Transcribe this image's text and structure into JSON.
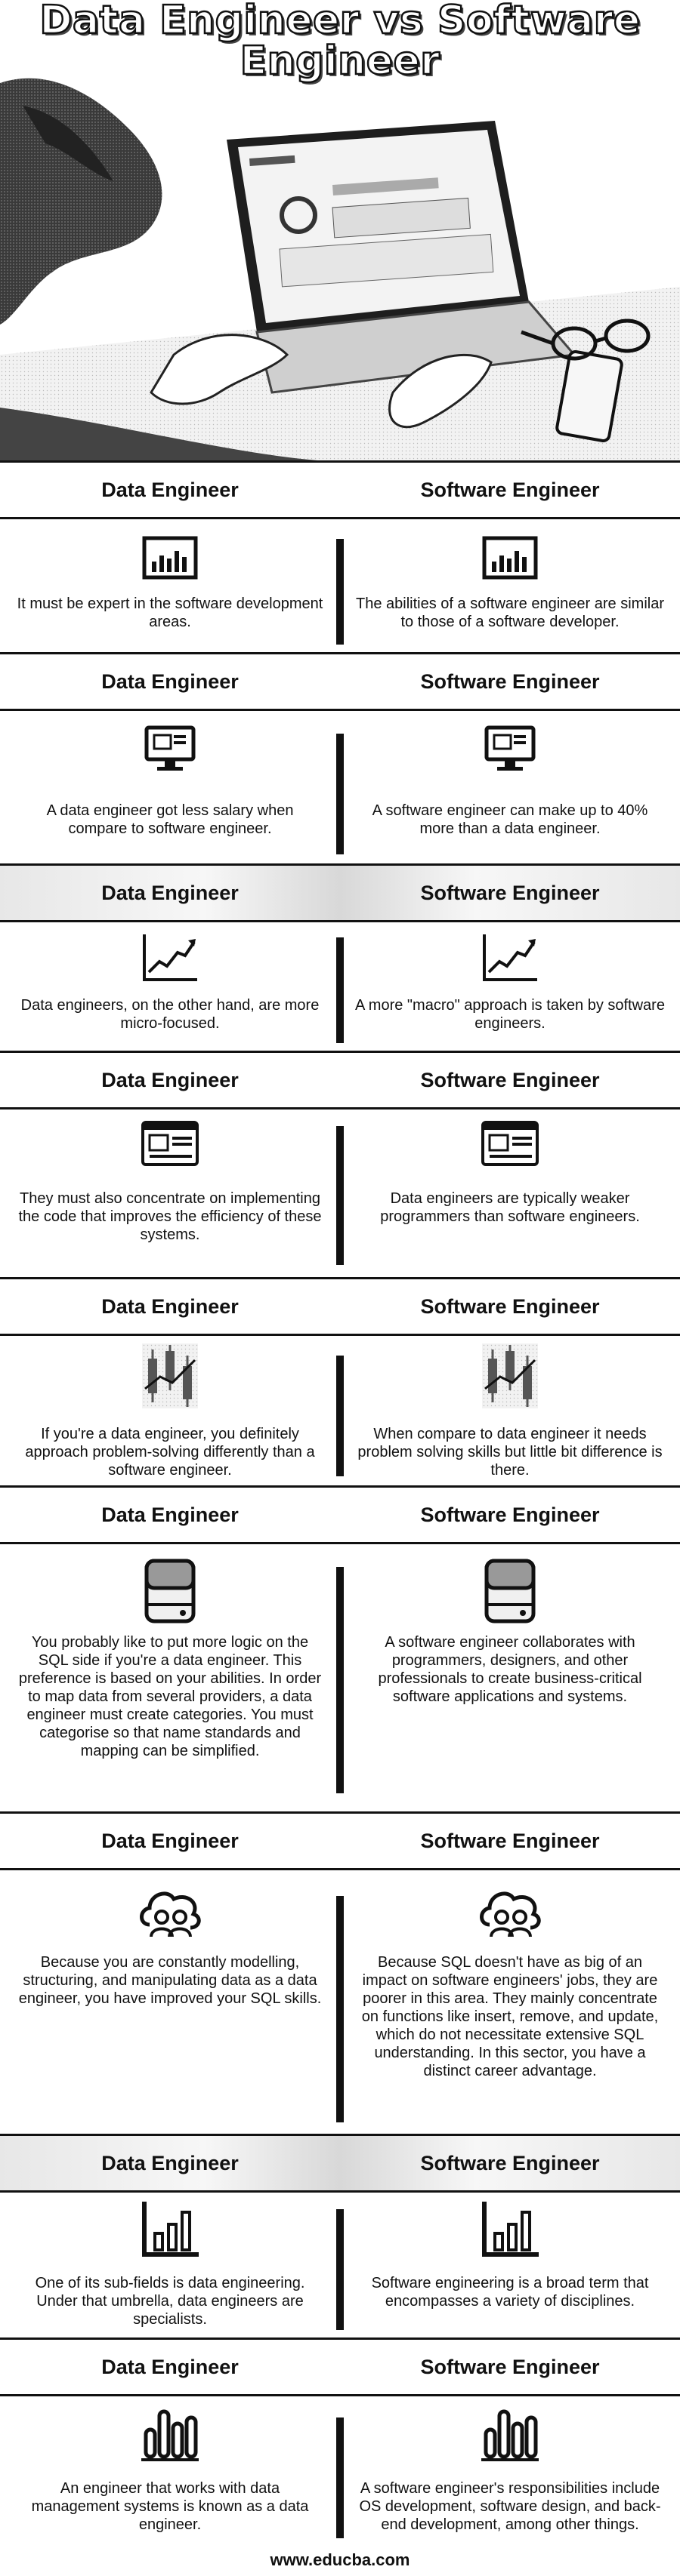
{
  "title": "Data Engineer vs Software Engineer",
  "header": {
    "left": "Data Engineer",
    "right": "Software Engineer"
  },
  "sections": [
    {
      "icon": "bar-chart-framed-icon",
      "left": "It must be expert in the software development areas.",
      "right": "The abilities of a software engineer are similar to those of a software developer."
    },
    {
      "icon": "monitor-chart-icon",
      "left": "A data engineer got less salary when compare to software engineer.",
      "right": "A software engineer can make up to 40% more than a data engineer."
    },
    {
      "icon": "line-chart-arrow-icon",
      "left": "Data engineers, on the other hand, are more micro-focused.",
      "right": "A more \"macro\" approach is taken by software engineers."
    },
    {
      "icon": "browser-window-icon",
      "left": "They must also concentrate on implementing the code that improves the efficiency of these systems.",
      "right": "Data engineers are typically weaker programmers than software engineers."
    },
    {
      "icon": "candlestick-chart-icon",
      "left": "If you're a data engineer, you definitely approach problem-solving differently than a software engineer.",
      "right": "When compare to data engineer it needs problem solving skills but little bit difference is there."
    },
    {
      "icon": "hard-drive-icon",
      "left": "You probably like to put more logic on the SQL side if you're a data engineer. This preference is based on your abilities. In order to map data from several providers, a data engineer must create categories. You must categorise so that name standards and mapping can be simplified.",
      "right": "A software engineer collaborates with programmers, designers, and other professionals to create business-critical software applications and systems."
    },
    {
      "icon": "users-cloud-icon",
      "left": "Because you are constantly modelling, structuring, and manipulating data as a data engineer, you have improved your SQL skills.",
      "right": "Because SQL doesn't have as big of an impact on software engineers' jobs, they are poorer in this area. They mainly concentrate on functions like insert, remove, and update, which do not necessitate extensive SQL understanding. In this sector, you have a distinct career advantage."
    },
    {
      "icon": "bar-chart-axis-icon",
      "left": "One of its sub-fields is data engineering. Under that umbrella, data engineers are specialists.",
      "right": "Software engineering is a broad term that encompasses a variety of disciplines."
    },
    {
      "icon": "rounded-bars-icon",
      "left": "An engineer that works with data management systems is known as a data engineer.",
      "right": "A software engineer's responsibilities include OS development, software design, and back-end development, among other things."
    }
  ],
  "footer": "www.educba.com"
}
